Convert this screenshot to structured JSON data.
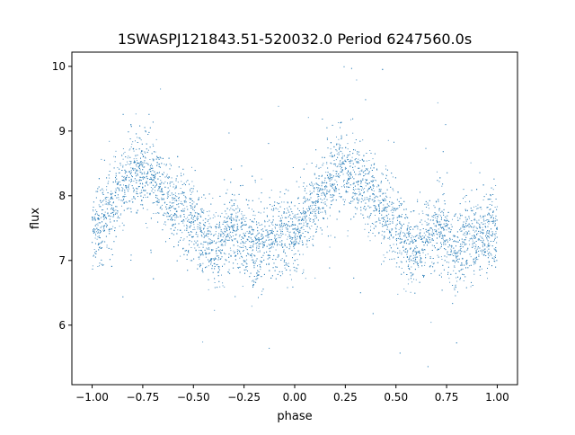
{
  "chart_data": {
    "type": "scatter",
    "title": "1SWASPJ121843.51-520032.0 Period 6247560.0s",
    "xlabel": "phase",
    "ylabel": "flux",
    "xlim": [
      -1.1,
      1.1
    ],
    "ylim": [
      5.08,
      10.22
    ],
    "xticks": [
      -1.0,
      -0.75,
      -0.5,
      -0.25,
      0.0,
      0.25,
      0.5,
      0.75,
      1.0
    ],
    "xtick_labels": [
      "−1.00",
      "−0.75",
      "−0.50",
      "−0.25",
      "0.00",
      "0.25",
      "0.50",
      "0.75",
      "1.00"
    ],
    "yticks": [
      6,
      7,
      8,
      9,
      10
    ],
    "ytick_labels": [
      "6",
      "7",
      "8",
      "9",
      "10"
    ],
    "grid": false,
    "marker_color": "#1f77b4",
    "note": "phase-folded light curve repeated over two cycles; binned mean flux per 0.05 phase with ~0.3 scatter",
    "binned_profile": {
      "phase": [
        0.0,
        0.05,
        0.1,
        0.15,
        0.2,
        0.25,
        0.3,
        0.35,
        0.4,
        0.45,
        0.5,
        0.55,
        0.6,
        0.65,
        0.7,
        0.75,
        0.8,
        0.85,
        0.9,
        0.95,
        1.0
      ],
      "mean_flux": [
        7.45,
        7.6,
        7.85,
        8.1,
        8.35,
        8.4,
        8.3,
        8.1,
        7.9,
        7.75,
        7.6,
        7.3,
        7.15,
        7.35,
        7.5,
        7.35,
        7.2,
        7.25,
        7.35,
        7.4,
        7.45
      ],
      "scatter": 0.3
    }
  }
}
